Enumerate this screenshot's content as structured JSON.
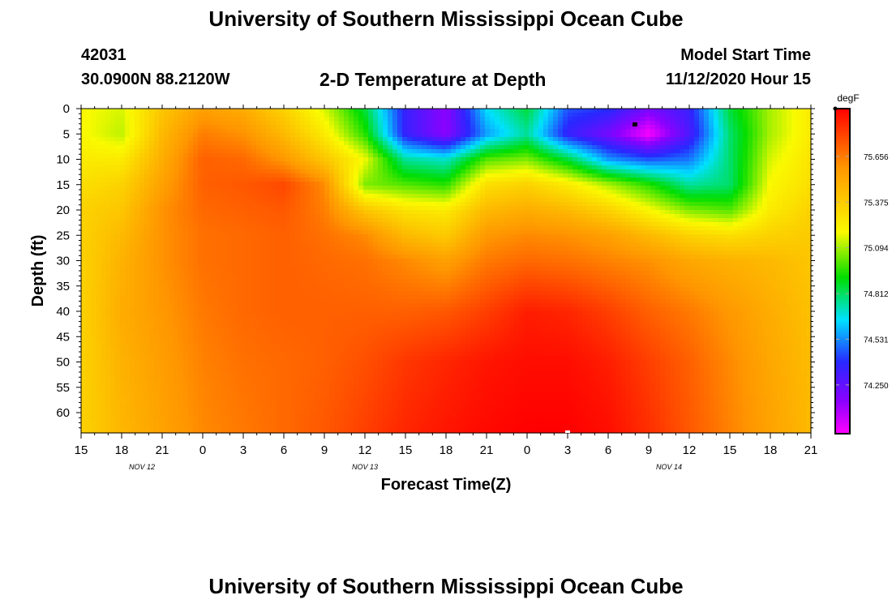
{
  "header": {
    "title": "University of Southern Mississippi Ocean Cube",
    "station_id": "42031",
    "coordinates": "30.0900N 88.2120W",
    "plot_title": "2-D Temperature at Depth",
    "start_label": "Model Start Time",
    "start_value": "11/12/2020 Hour 15"
  },
  "footer": {
    "title": "University of Southern Mississippi Ocean Cube"
  },
  "chart_data": {
    "type": "heatmap",
    "title": "2-D Temperature at Depth",
    "xlabel": "Forecast Time(Z)",
    "ylabel": "Depth (ft)",
    "units": "degF",
    "x_range_hours": [
      0,
      54
    ],
    "y_range_ft": [
      0,
      64
    ],
    "x_ticks": [
      {
        "h": 0,
        "label": "15"
      },
      {
        "h": 3,
        "label": "18"
      },
      {
        "h": 6,
        "label": "21"
      },
      {
        "h": 9,
        "label": "0"
      },
      {
        "h": 12,
        "label": "3"
      },
      {
        "h": 15,
        "label": "6"
      },
      {
        "h": 18,
        "label": "9"
      },
      {
        "h": 21,
        "label": "12"
      },
      {
        "h": 24,
        "label": "15"
      },
      {
        "h": 27,
        "label": "18"
      },
      {
        "h": 30,
        "label": "21"
      },
      {
        "h": 33,
        "label": "0"
      },
      {
        "h": 36,
        "label": "3"
      },
      {
        "h": 39,
        "label": "6"
      },
      {
        "h": 42,
        "label": "9"
      },
      {
        "h": 45,
        "label": "12"
      },
      {
        "h": 48,
        "label": "15"
      },
      {
        "h": 51,
        "label": "18"
      },
      {
        "h": 54,
        "label": "21"
      }
    ],
    "date_labels": [
      {
        "h": 4.5,
        "label": "NOV 12"
      },
      {
        "h": 21,
        "label": "NOV 13"
      },
      {
        "h": 43.5,
        "label": "NOV 14"
      }
    ],
    "y_ticks": [
      0,
      5,
      10,
      15,
      20,
      25,
      30,
      35,
      40,
      45,
      50,
      55,
      60
    ],
    "colorbar": {
      "min": 73.95,
      "max": 75.95,
      "ticks": [
        75.656,
        75.375,
        75.094,
        74.812,
        74.531,
        74.25
      ]
    },
    "depth_levels_ft": [
      0,
      5,
      10,
      15,
      20,
      25,
      30,
      40,
      50,
      64
    ],
    "time_hours": [
      0,
      3,
      6,
      9,
      12,
      15,
      18,
      21,
      24,
      27,
      30,
      33,
      36,
      39,
      42,
      45,
      48,
      51,
      54
    ],
    "temperature_degF": [
      [
        75.2,
        75.15,
        75.4,
        75.55,
        75.5,
        75.35,
        75.15,
        74.85,
        74.35,
        74.15,
        74.65,
        74.85,
        74.45,
        74.4,
        74.2,
        74.35,
        74.85,
        75.1,
        75.25
      ],
      [
        75.2,
        75.12,
        75.45,
        75.65,
        75.6,
        75.45,
        75.25,
        74.95,
        74.35,
        74.15,
        74.55,
        74.75,
        74.35,
        74.2,
        73.95,
        74.3,
        74.8,
        75.1,
        75.25
      ],
      [
        75.25,
        75.25,
        75.5,
        75.72,
        75.7,
        75.58,
        75.4,
        75.18,
        74.75,
        74.7,
        75.0,
        75.05,
        74.85,
        74.55,
        74.45,
        74.5,
        74.8,
        75.15,
        75.28
      ],
      [
        75.3,
        75.35,
        75.55,
        75.72,
        75.74,
        75.78,
        75.62,
        75.05,
        75.0,
        74.95,
        75.3,
        75.35,
        75.25,
        75.1,
        74.95,
        74.75,
        74.8,
        75.2,
        75.3
      ],
      [
        75.35,
        75.4,
        75.6,
        75.7,
        75.72,
        75.74,
        75.65,
        75.4,
        75.28,
        75.25,
        75.45,
        75.5,
        75.45,
        75.35,
        75.2,
        75.05,
        75.0,
        75.25,
        75.35
      ],
      [
        75.35,
        75.45,
        75.6,
        75.68,
        75.7,
        75.72,
        75.68,
        75.62,
        75.45,
        75.38,
        75.58,
        75.62,
        75.6,
        75.55,
        75.45,
        75.35,
        75.3,
        75.35,
        75.38
      ],
      [
        75.35,
        75.48,
        75.6,
        75.68,
        75.7,
        75.72,
        75.7,
        75.68,
        75.62,
        75.55,
        75.66,
        75.7,
        75.68,
        75.64,
        75.6,
        75.52,
        75.48,
        75.45,
        75.4
      ],
      [
        75.35,
        75.5,
        75.58,
        75.66,
        75.7,
        75.72,
        75.72,
        75.72,
        75.72,
        75.74,
        75.8,
        75.88,
        75.86,
        75.8,
        75.72,
        75.66,
        75.58,
        75.5,
        75.42
      ],
      [
        75.35,
        75.48,
        75.56,
        75.64,
        75.68,
        75.7,
        75.72,
        75.76,
        75.82,
        75.86,
        75.9,
        75.92,
        75.92,
        75.88,
        75.8,
        75.72,
        75.62,
        75.52,
        75.44
      ],
      [
        75.35,
        75.46,
        75.54,
        75.62,
        75.66,
        75.7,
        75.74,
        75.8,
        75.86,
        75.9,
        75.93,
        75.95,
        75.95,
        75.92,
        75.84,
        75.74,
        75.64,
        75.54,
        75.45
      ]
    ]
  }
}
